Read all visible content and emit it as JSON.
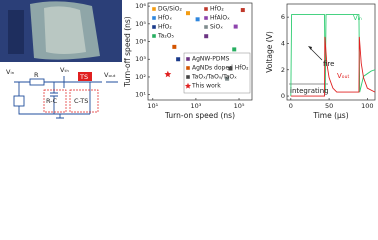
{
  "chart_data": [
    {
      "type": "scatter",
      "x_label": "Turn-on speed (ns)",
      "y_label": "Turn-off speed (ns)",
      "xscale": "log",
      "yscale": "log",
      "xlim": [
        6,
        400000
      ],
      "ylim": [
        5,
        1500000
      ],
      "xticks": [
        {
          "value": 10,
          "label": "10¹"
        },
        {
          "value": 1000,
          "label": "10³"
        },
        {
          "value": 100000,
          "label": "10⁵"
        }
      ],
      "yticks": [
        {
          "value": 10,
          "label": "10¹"
        },
        {
          "value": 100,
          "label": "10²"
        },
        {
          "value": 1000,
          "label": "10³"
        },
        {
          "value": 10000,
          "label": "10⁴"
        },
        {
          "value": 100000,
          "label": "10⁵"
        },
        {
          "value": 1000000,
          "label": "10⁶"
        }
      ],
      "series": [
        {
          "name": "DG/SiO₂",
          "color": "#f39c12",
          "marker": "square",
          "x": [
            430
          ],
          "values": [
            400000
          ]
        },
        {
          "name": "HfOₓ",
          "color": "#2e86de",
          "marker": "square",
          "x": [
            1200
          ],
          "values": [
            180000
          ]
        },
        {
          "name": "HfO₂",
          "color": "#1a3a8a",
          "marker": "square",
          "x": [
            150
          ],
          "values": [
            1000
          ]
        },
        {
          "name": "Ta₂O₅",
          "color": "#27ae60",
          "marker": "square",
          "x": [
            60000
          ],
          "values": [
            3600
          ]
        },
        {
          "name": "HfO₂",
          "color": "#c0392b",
          "marker": "square",
          "x": [
            150000
          ],
          "values": [
            600000
          ]
        },
        {
          "name": "HfAlOₓ",
          "color": "#8e44ad",
          "marker": "square",
          "x": [
            70000
          ],
          "values": [
            70000
          ]
        },
        {
          "name": "SiOₓ",
          "color": "#7f8c8d",
          "marker": "square",
          "x": [
            28000
          ],
          "values": [
            80
          ]
        },
        {
          "name": "AgNW-PDMS",
          "color": "#6c3483",
          "marker": "square",
          "x": [
            3000
          ],
          "values": [
            20000
          ]
        },
        {
          "name": "AgNDs doped HfO₂",
          "color": "#d35400",
          "marker": "square",
          "x": [
            100
          ],
          "values": [
            5000
          ]
        },
        {
          "name": "TaOₓ/TaOᵧ/TaOₓ",
          "color": "#444444",
          "marker": "square",
          "x": [
            40000
          ],
          "values": [
            300
          ]
        },
        {
          "name": "This work",
          "color": "#e02020",
          "marker": "star",
          "x": [
            50
          ],
          "values": [
            140
          ]
        }
      ]
    },
    {
      "type": "line",
      "x_label": "Time (μs)",
      "y_label": "Voltage (V)",
      "xlim": [
        -5,
        110
      ],
      "ylim": [
        -0.3,
        7
      ],
      "xticks": [
        0,
        50,
        100
      ],
      "yticks": [
        0,
        2,
        4,
        6
      ],
      "series": [
        {
          "name": "Vᵢₙ",
          "color": "#2ecc71",
          "x": [
            0,
            1,
            44,
            45,
            46,
            89,
            90,
            95,
            105,
            110
          ],
          "values": [
            0,
            6.2,
            6.2,
            0.3,
            6.2,
            6.2,
            0.3,
            1.5,
            1.9,
            2
          ]
        },
        {
          "name": "Vₒᵤₜ",
          "color": "#e02020",
          "x": [
            0,
            44,
            44.5,
            47,
            50,
            55,
            60,
            89,
            89.5,
            92,
            95,
            100,
            110
          ],
          "values": [
            0,
            0,
            4.5,
            2.5,
            1.4,
            0.6,
            0.3,
            0.3,
            4.5,
            2.5,
            1.4,
            0.6,
            0.3
          ]
        }
      ],
      "annotations": [
        "fire",
        "integrating"
      ]
    }
  ],
  "diagram": {
    "labels": [
      "Vᵢₙ",
      "R",
      "Vₜₕ",
      "TS",
      "Vₒᵤₜ",
      "R-C",
      "C-TS"
    ]
  }
}
